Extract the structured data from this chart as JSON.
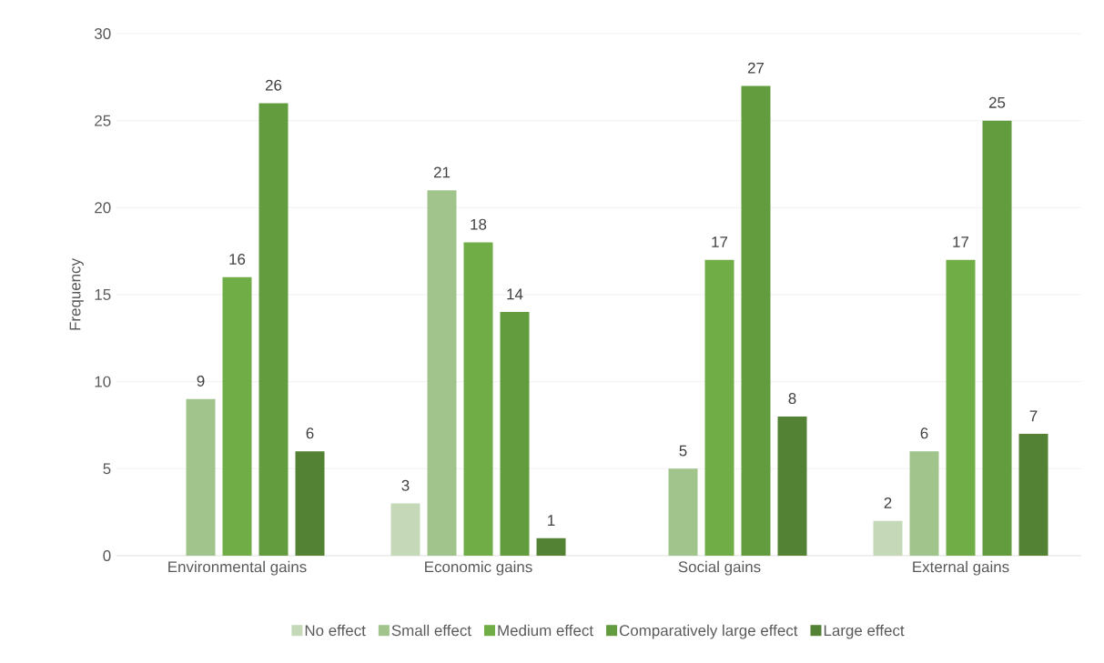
{
  "chart_data": {
    "type": "bar",
    "ylabel": "Frequency",
    "categories": [
      "Environmental gains",
      "Economic gains",
      "Social gains",
      "External gains"
    ],
    "series": [
      {
        "name": "No effect",
        "color": "#c5d9b8",
        "values": [
          null,
          3,
          null,
          2
        ]
      },
      {
        "name": "Small effect",
        "color": "#a1c48d",
        "values": [
          9,
          21,
          5,
          6
        ]
      },
      {
        "name": "Medium effect",
        "color": "#70ad47",
        "values": [
          16,
          18,
          17,
          17
        ]
      },
      {
        "name": "Comparatively large effect",
        "color": "#629c3e",
        "values": [
          26,
          14,
          27,
          25
        ]
      },
      {
        "name": "Large effect",
        "color": "#548235",
        "values": [
          6,
          1,
          8,
          7
        ]
      }
    ],
    "ylim": [
      0,
      30
    ],
    "yticks": [
      0,
      5,
      10,
      15,
      20,
      25,
      30
    ],
    "grid": "y",
    "legend": "bottom",
    "data_labels": true
  }
}
